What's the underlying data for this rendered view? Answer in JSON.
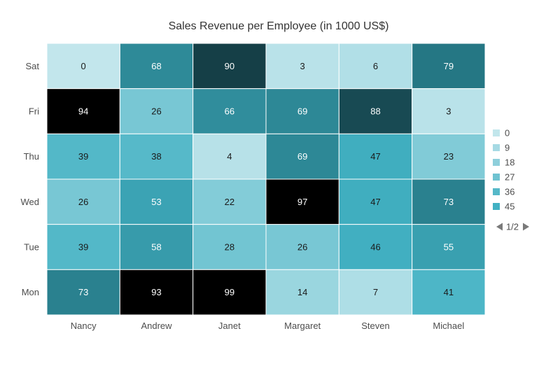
{
  "chart_data": {
    "type": "heatmap",
    "title": "Sales Revenue per Employee (in 1000 US$)",
    "x_categories": [
      "Nancy",
      "Andrew",
      "Janet",
      "Margaret",
      "Steven",
      "Michael"
    ],
    "y_categories": [
      "Sat",
      "Fri",
      "Thu",
      "Wed",
      "Tue",
      "Mon"
    ],
    "values": [
      [
        0,
        68,
        90,
        3,
        6,
        79
      ],
      [
        94,
        26,
        66,
        69,
        88,
        3
      ],
      [
        39,
        38,
        4,
        69,
        47,
        23
      ],
      [
        26,
        53,
        22,
        97,
        47,
        73
      ],
      [
        39,
        58,
        28,
        26,
        46,
        55
      ],
      [
        73,
        93,
        99,
        14,
        7,
        41
      ]
    ],
    "legend": {
      "placement": "right",
      "entries": [
        "0",
        "9",
        "18",
        "27",
        "36",
        "45"
      ],
      "colors": [
        "#c2e6ec",
        "#a6dae4",
        "#8ecfdb",
        "#6fc3d1",
        "#55b8c8",
        "#42b1c3"
      ],
      "page": "1/2"
    },
    "color_stops": [
      {
        "value": 0,
        "color": "#c2e6ec"
      },
      {
        "value": 45,
        "color": "#42b1c3"
      },
      {
        "value": 80,
        "color": "#247582"
      },
      {
        "value": 90,
        "color": "#153f47"
      },
      {
        "value": 92,
        "color": "#000000"
      }
    ]
  }
}
